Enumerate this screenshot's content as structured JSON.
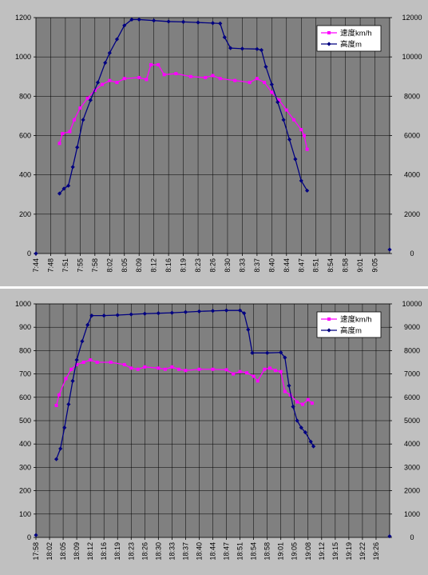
{
  "chart_data": [
    {
      "type": "line",
      "x_ticks": [
        "7:44",
        "7:48",
        "7:51",
        "7:55",
        "7:58",
        "8:02",
        "8:05",
        "8:09",
        "8:12",
        "8:16",
        "8:19",
        "8:23",
        "8:26",
        "8:30",
        "8:33",
        "8:37",
        "8:40",
        "8:44",
        "8:47",
        "8:51",
        "8:54",
        "8:58",
        "9:01",
        "9:05"
      ],
      "y_left": {
        "min": 0,
        "max": 1200,
        "ticks": [
          "0",
          "200",
          "400",
          "600",
          "800",
          "1000",
          "1200"
        ]
      },
      "y_right": {
        "min": 0,
        "max": 12000,
        "ticks": [
          "0",
          "2000",
          "4000",
          "6000",
          "8000",
          "10000",
          "12000"
        ]
      },
      "legend_position": "top-right",
      "grid": true,
      "series": [
        {
          "name": "速度km/h",
          "axis": "left",
          "color": "#ff00ff",
          "marker": "square",
          "points": [
            [
              1.6,
              560
            ],
            [
              1.8,
              610
            ],
            [
              2.3,
              620
            ],
            [
              2.6,
              680
            ],
            [
              3.0,
              740
            ],
            [
              3.5,
              790
            ],
            [
              4.0,
              830
            ],
            [
              4.5,
              860
            ],
            [
              5.0,
              880
            ],
            [
              5.5,
              870
            ],
            [
              6.0,
              890
            ],
            [
              7.0,
              895
            ],
            [
              7.5,
              885
            ],
            [
              7.8,
              960
            ],
            [
              8.3,
              960
            ],
            [
              8.7,
              910
            ],
            [
              9.5,
              915
            ],
            [
              10.5,
              900
            ],
            [
              11.5,
              895
            ],
            [
              12.0,
              905
            ],
            [
              12.5,
              890
            ],
            [
              13.5,
              880
            ],
            [
              14.5,
              870
            ],
            [
              15.0,
              890
            ],
            [
              15.5,
              870
            ],
            [
              16.0,
              820
            ],
            [
              16.5,
              780
            ],
            [
              17.0,
              730
            ],
            [
              17.5,
              680
            ],
            [
              18.0,
              630
            ],
            [
              18.2,
              600
            ],
            [
              18.4,
              530
            ]
          ]
        },
        {
          "name": "高度m",
          "axis": "right",
          "color": "#000080",
          "marker": "diamond",
          "points": [
            [
              0,
              0
            ],
            [
              1.6,
              3050
            ],
            [
              1.9,
              3300
            ],
            [
              2.2,
              3450
            ],
            [
              2.5,
              4400
            ],
            [
              2.8,
              5400
            ],
            [
              3.2,
              6800
            ],
            [
              3.7,
              7800
            ],
            [
              4.2,
              8700
            ],
            [
              4.7,
              9700
            ],
            [
              5.0,
              10200
            ],
            [
              5.5,
              10900
            ],
            [
              6.0,
              11600
            ],
            [
              6.5,
              11900
            ],
            [
              7.0,
              11900
            ],
            [
              8.0,
              11850
            ],
            [
              9.0,
              11800
            ],
            [
              10.0,
              11780
            ],
            [
              11.0,
              11750
            ],
            [
              12.0,
              11720
            ],
            [
              12.5,
              11700
            ],
            [
              12.8,
              11000
            ],
            [
              13.2,
              10450
            ],
            [
              14.0,
              10420
            ],
            [
              15.0,
              10400
            ],
            [
              15.3,
              10350
            ],
            [
              15.6,
              9500
            ],
            [
              16.0,
              8600
            ],
            [
              16.4,
              7700
            ],
            [
              16.8,
              6800
            ],
            [
              17.2,
              5800
            ],
            [
              17.6,
              4800
            ],
            [
              18.0,
              3700
            ],
            [
              18.4,
              3200
            ],
            [
              24,
              200
            ]
          ]
        }
      ]
    },
    {
      "type": "line",
      "x_ticks": [
        "17:58",
        "18:02",
        "18:05",
        "18:09",
        "18:12",
        "18:16",
        "18:19",
        "18:23",
        "18:26",
        "18:30",
        "18:33",
        "18:37",
        "18:40",
        "18:44",
        "18:47",
        "18:51",
        "18:54",
        "18:58",
        "19:01",
        "19:05",
        "19:08",
        "19:12",
        "19:15",
        "19:19",
        "19:22",
        "19:26"
      ],
      "y_left": {
        "min": 0,
        "max": 1000,
        "ticks": [
          "0",
          "100",
          "200",
          "300",
          "400",
          "500",
          "600",
          "700",
          "800",
          "900",
          "1000"
        ]
      },
      "y_right": {
        "min": 0,
        "max": 10000,
        "ticks": [
          "0",
          "1000",
          "2000",
          "3000",
          "4000",
          "5000",
          "6000",
          "7000",
          "8000",
          "9000",
          "10000"
        ]
      },
      "legend_position": "top-right",
      "grid": true,
      "series": [
        {
          "name": "速度km/h",
          "axis": "left",
          "color": "#ff00ff",
          "marker": "square",
          "points": [
            [
              1.5,
              565
            ],
            [
              1.7,
              610
            ],
            [
              2.2,
              680
            ],
            [
              2.6,
              720
            ],
            [
              3.0,
              740
            ],
            [
              3.5,
              750
            ],
            [
              4.0,
              760
            ],
            [
              4.5,
              750
            ],
            [
              5.5,
              750
            ],
            [
              6.5,
              740
            ],
            [
              7.0,
              725
            ],
            [
              7.5,
              720
            ],
            [
              8.0,
              730
            ],
            [
              9.0,
              725
            ],
            [
              9.5,
              720
            ],
            [
              10.0,
              730
            ],
            [
              10.5,
              720
            ],
            [
              11.0,
              715
            ],
            [
              12.0,
              720
            ],
            [
              13.0,
              720
            ],
            [
              14.0,
              718
            ],
            [
              14.5,
              700
            ],
            [
              15.0,
              710
            ],
            [
              15.5,
              705
            ],
            [
              16.0,
              690
            ],
            [
              16.3,
              670
            ],
            [
              16.8,
              720
            ],
            [
              17.2,
              725
            ],
            [
              17.6,
              715
            ],
            [
              18.0,
              710
            ],
            [
              18.3,
              625
            ],
            [
              18.7,
              610
            ],
            [
              19.2,
              580
            ],
            [
              19.6,
              570
            ],
            [
              20.0,
              590
            ],
            [
              20.3,
              575
            ]
          ]
        },
        {
          "name": "高度m",
          "axis": "right",
          "color": "#000080",
          "marker": "diamond",
          "points": [
            [
              0,
              100
            ],
            [
              1.5,
              3350
            ],
            [
              1.8,
              3800
            ],
            [
              2.1,
              4700
            ],
            [
              2.4,
              5700
            ],
            [
              2.7,
              6700
            ],
            [
              3.0,
              7600
            ],
            [
              3.4,
              8400
            ],
            [
              3.8,
              9100
            ],
            [
              4.1,
              9500
            ],
            [
              5.0,
              9500
            ],
            [
              6.0,
              9520
            ],
            [
              7.0,
              9550
            ],
            [
              8.0,
              9580
            ],
            [
              9.0,
              9600
            ],
            [
              10.0,
              9620
            ],
            [
              11.0,
              9650
            ],
            [
              12.0,
              9680
            ],
            [
              13.0,
              9700
            ],
            [
              14.0,
              9720
            ],
            [
              15.0,
              9720
            ],
            [
              15.3,
              9600
            ],
            [
              15.6,
              8900
            ],
            [
              15.9,
              7900
            ],
            [
              17.0,
              7900
            ],
            [
              18.0,
              7920
            ],
            [
              18.3,
              7700
            ],
            [
              18.6,
              6500
            ],
            [
              18.9,
              5600
            ],
            [
              19.2,
              5000
            ],
            [
              19.5,
              4700
            ],
            [
              19.8,
              4500
            ],
            [
              20.2,
              4100
            ],
            [
              20.4,
              3900
            ],
            [
              26,
              50
            ]
          ]
        }
      ]
    }
  ]
}
